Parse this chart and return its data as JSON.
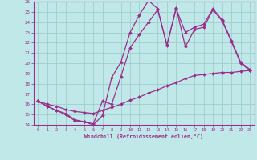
{
  "xlabel": "Windchill (Refroidissement éolien,°C)",
  "xlim": [
    -0.5,
    23.5
  ],
  "ylim": [
    14,
    26
  ],
  "xticks": [
    0,
    1,
    2,
    3,
    4,
    5,
    6,
    7,
    8,
    9,
    10,
    11,
    12,
    13,
    14,
    15,
    16,
    17,
    18,
    19,
    20,
    21,
    22,
    23
  ],
  "yticks": [
    14,
    15,
    16,
    17,
    18,
    19,
    20,
    21,
    22,
    23,
    24,
    25,
    26
  ],
  "bg_color": "#c0e8e8",
  "grid_color": "#98c8c8",
  "line_color": "#9b2d8c",
  "line_width": 0.9,
  "marker": "D",
  "marker_size": 2.0,
  "series": [
    [
      16.3,
      15.8,
      15.4,
      15.0,
      14.4,
      14.3,
      14.0,
      14.9,
      18.6,
      20.1,
      23.0,
      24.7,
      26.1,
      25.3,
      21.7,
      25.4,
      21.6,
      23.3,
      23.5,
      25.2,
      24.1,
      22.1,
      20.0,
      19.3
    ],
    [
      16.3,
      15.8,
      15.4,
      15.1,
      14.5,
      14.3,
      14.1,
      16.3,
      16.0,
      18.7,
      21.5,
      22.8,
      24.0,
      25.2,
      21.8,
      25.3,
      23.0,
      23.5,
      23.8,
      25.3,
      24.2,
      22.2,
      20.1,
      19.4
    ],
    [
      16.3,
      16.0,
      15.8,
      15.5,
      15.3,
      15.2,
      15.1,
      15.4,
      15.7,
      16.0,
      16.4,
      16.7,
      17.1,
      17.4,
      17.8,
      18.1,
      18.5,
      18.8,
      18.9,
      19.0,
      19.1,
      19.1,
      19.2,
      19.3
    ]
  ]
}
